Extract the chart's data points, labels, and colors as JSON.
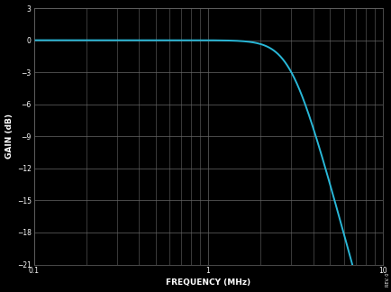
{
  "xlabel": "FREQUENCY (MHz)",
  "ylabel": "GAIN (dB)",
  "xlabel_fontsize": 6.5,
  "ylabel_fontsize": 6.5,
  "xmin": 0.1,
  "xmax": 10,
  "ymin": -21,
  "ymax": 3,
  "yticks": [
    3,
    0,
    -3,
    -6,
    -9,
    -12,
    -15,
    -18,
    -21
  ],
  "xtick_major": [
    0.1,
    1,
    10
  ],
  "xticklabels": [
    "0.1",
    "1",
    "10"
  ],
  "line_color": "#29b8d8",
  "line_width": 1.4,
  "background_color": "#000000",
  "grid_color": "#666666",
  "tick_color": "#ffffff",
  "label_color": "#ffffff",
  "fc_MHz": 3.0,
  "filter_order": 3,
  "note_text": "REV. 0"
}
